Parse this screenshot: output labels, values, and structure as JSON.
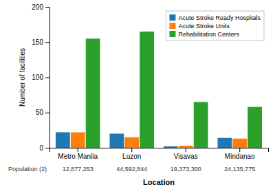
{
  "chart_data": {
    "type": "bar",
    "categories": [
      "Metro Manila",
      "Luzon",
      "Visavas",
      "Mindanao"
    ],
    "series": [
      {
        "name": "Acute Stroke Ready Hospitals",
        "values": [
          22,
          20,
          2,
          14
        ]
      },
      {
        "name": "Acute Stroke Units",
        "values": [
          22,
          15,
          3,
          13
        ]
      },
      {
        "name": "Rehabilitation Centers",
        "values": [
          155,
          165,
          65,
          58
        ]
      }
    ],
    "ylabel": "Number of facilities",
    "xlabel": "Location",
    "population_label": "Population (2)",
    "populations": [
      "12,877,253",
      "44,592,844",
      "19,373,300",
      "24,135,775"
    ],
    "ylim": [
      0,
      200
    ],
    "yticks": [
      0,
      50,
      100,
      150,
      200
    ],
    "grid": false,
    "legend": "upper right"
  }
}
